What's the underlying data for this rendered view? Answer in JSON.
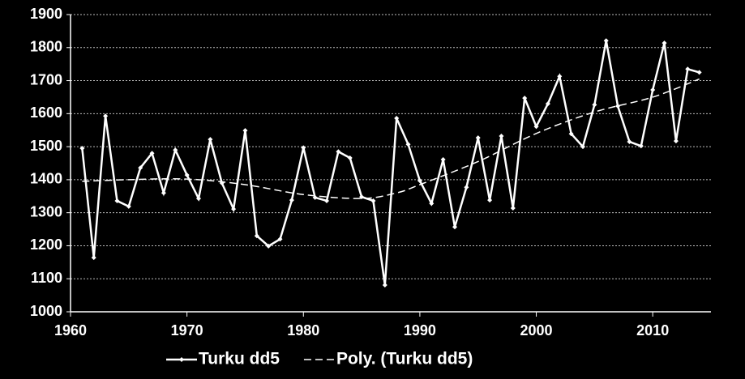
{
  "chart_data": {
    "type": "line",
    "x": [
      1961,
      1962,
      1963,
      1964,
      1965,
      1966,
      1967,
      1968,
      1969,
      1970,
      1971,
      1972,
      1973,
      1974,
      1975,
      1976,
      1977,
      1978,
      1979,
      1980,
      1981,
      1982,
      1983,
      1984,
      1985,
      1986,
      1987,
      1988,
      1989,
      1990,
      1991,
      1992,
      1993,
      1994,
      1995,
      1996,
      1997,
      1998,
      1999,
      2000,
      2001,
      2002,
      2003,
      2004,
      2005,
      2006,
      2007,
      2008,
      2009,
      2010,
      2011,
      2012,
      2013,
      2014
    ],
    "series": [
      {
        "name": "Turku dd5",
        "color": "#ffffff",
        "style": "solid",
        "values": [
          1495,
          1164,
          1593,
          1336,
          1319,
          1436,
          1480,
          1360,
          1490,
          1414,
          1343,
          1522,
          1390,
          1311,
          1549,
          1230,
          1199,
          1220,
          1338,
          1497,
          1346,
          1336,
          1485,
          1466,
          1348,
          1336,
          1081,
          1586,
          1507,
          1397,
          1328,
          1461,
          1257,
          1377,
          1527,
          1338,
          1532,
          1314,
          1647,
          1561,
          1630,
          1713,
          1539,
          1500,
          1627,
          1821,
          1623,
          1515,
          1502,
          1672,
          1814,
          1517,
          1735,
          1725
        ]
      },
      {
        "name": "Poly. (Turku dd5)",
        "color": "#ffffff",
        "style": "dashed",
        "x": [
          1961,
          1965,
          1970,
          1975,
          1980,
          1985,
          1988,
          1990,
          1995,
          2000,
          2005,
          2010,
          2014
        ],
        "values": [
          1395,
          1400,
          1402,
          1385,
          1355,
          1343,
          1360,
          1385,
          1455,
          1540,
          1605,
          1650,
          1705
        ]
      }
    ],
    "xlim": [
      1960,
      2015
    ],
    "xticks": [
      1960,
      1970,
      1980,
      1990,
      2000,
      2010
    ],
    "ylim": [
      1000,
      1900
    ],
    "yticks": [
      1000,
      1100,
      1200,
      1300,
      1400,
      1500,
      1600,
      1700,
      1800,
      1900
    ],
    "grid": true,
    "legend": "bottom"
  }
}
